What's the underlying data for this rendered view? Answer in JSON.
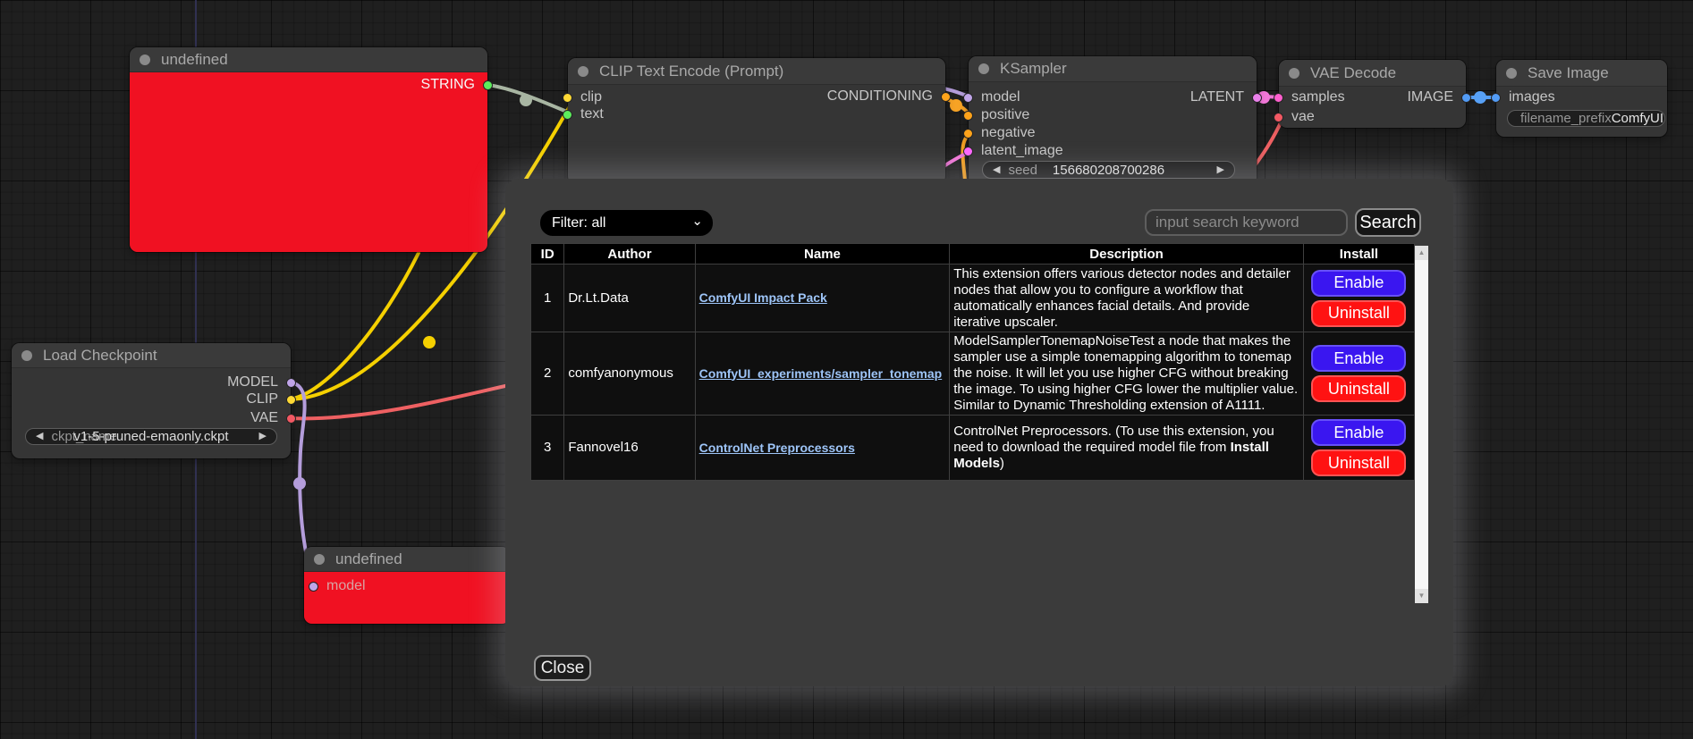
{
  "canvas": {
    "nodes": {
      "undefined_top": {
        "title": "undefined",
        "output_label": "STRING"
      },
      "clip_text_encode": {
        "title": "CLIP Text Encode (Prompt)",
        "inputs": [
          "clip",
          "text"
        ],
        "output_label": "CONDITIONING"
      },
      "ksampler": {
        "title": "KSampler",
        "inputs": [
          "model",
          "positive",
          "negative",
          "latent_image"
        ],
        "output_label": "LATENT",
        "seed_widget": {
          "label": "seed",
          "value": "156680208700286"
        }
      },
      "vae_decode": {
        "title": "VAE Decode",
        "inputs": [
          "samples",
          "vae"
        ],
        "output_label": "IMAGE"
      },
      "save_image": {
        "title": "Save Image",
        "input_label": "images",
        "filename_widget": {
          "label": "filename_prefix",
          "value": "ComfyUI"
        }
      },
      "load_checkpoint": {
        "title": "Load Checkpoint",
        "outputs": [
          "MODEL",
          "CLIP",
          "VAE"
        ],
        "ckpt_widget": {
          "label": "ckpt_name",
          "value": "v1-5-pruned-emaonly.ckpt"
        }
      },
      "undefined_bottom": {
        "title": "undefined",
        "input_label": "model"
      }
    }
  },
  "modal": {
    "filter": {
      "selected": "Filter: all"
    },
    "search": {
      "placeholder": "input search keyword",
      "button_label": "Search"
    },
    "close_label": "Close",
    "table": {
      "headers": [
        "ID",
        "Author",
        "Name",
        "Description",
        "Install"
      ],
      "rows": [
        {
          "id": "1",
          "author": "Dr.Lt.Data",
          "name": "ComfyUI Impact Pack",
          "description": [
            {
              "text": "This extension offers various detector nodes and detailer nodes that allow you to configure a workflow that automatically enhances facial details. And provide iterative upscaler.",
              "bold": false
            }
          ],
          "enable_label": "Enable",
          "uninstall_label": "Uninstall"
        },
        {
          "id": "2",
          "author": "comfyanonymous",
          "name": "ComfyUI_experiments/sampler_tonemap",
          "description": [
            {
              "text": "ModelSamplerTonemapNoiseTest a node that makes the sampler use a simple tonemapping algorithm to tonemap the noise. It will let you use higher CFG without breaking the image. To using higher CFG lower the multiplier value. Similar to Dynamic Thresholding extension of A1111.",
              "bold": false
            }
          ],
          "enable_label": "Enable",
          "uninstall_label": "Uninstall"
        },
        {
          "id": "3",
          "author": "Fannovel16",
          "name": "ControlNet Preprocessors",
          "description": [
            {
              "text": "ControlNet Preprocessors. (To use this extension, you need to download the required model file from ",
              "bold": false
            },
            {
              "text": "Install Models",
              "bold": true
            },
            {
              "text": ")",
              "bold": false
            }
          ],
          "enable_label": "Enable",
          "uninstall_label": "Uninstall"
        }
      ]
    }
  },
  "icons": {
    "chevron_down": "⌄",
    "arrow_left": "◀",
    "arrow_right": "▶",
    "scroll_up": "▲",
    "scroll_down": "▼"
  },
  "colors": {
    "error_node_red": "#f01122",
    "enable_blue": "#3a16f0",
    "uninstall_red": "#ff1212",
    "link_blue": "#9ec5f8",
    "wire_string": "#a8b5a2",
    "wire_clip_yellow": "#f5d000",
    "wire_model_purple": "#b49ddb",
    "wire_vae_salmon": "#ee6062",
    "wire_conditioning_orange": "#f7a325",
    "wire_latent_pink": "#f177d8",
    "wire_image_blue": "#57a0f5",
    "port_green": "#5ced5c",
    "port_yellow": "#fdd835",
    "port_orange": "#ffa31a",
    "port_purple": "#c0a5e8",
    "port_pink": "#ff66ff",
    "port_magenta": "#ff5fce",
    "port_red": "#f25863",
    "port_blue": "#529bf5",
    "port_violet": "#ea80ea"
  }
}
